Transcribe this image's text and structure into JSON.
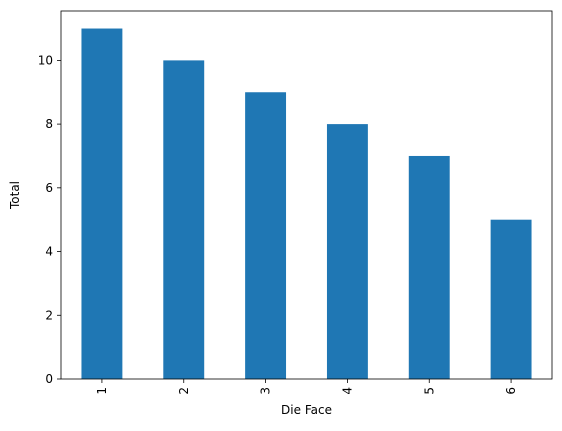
{
  "chart_data": {
    "type": "bar",
    "title": "",
    "xlabel": "Die Face",
    "ylabel": "Total",
    "categories": [
      "1",
      "2",
      "3",
      "4",
      "5",
      "6"
    ],
    "values": [
      11,
      10,
      9,
      8,
      7,
      5
    ],
    "ylim": [
      0,
      11.55
    ],
    "yticks": [
      0,
      2,
      4,
      6,
      8,
      10
    ],
    "x_tick_rotation": "vertical",
    "bar_color": "#1f77b4",
    "grid": false,
    "legend": "none"
  }
}
